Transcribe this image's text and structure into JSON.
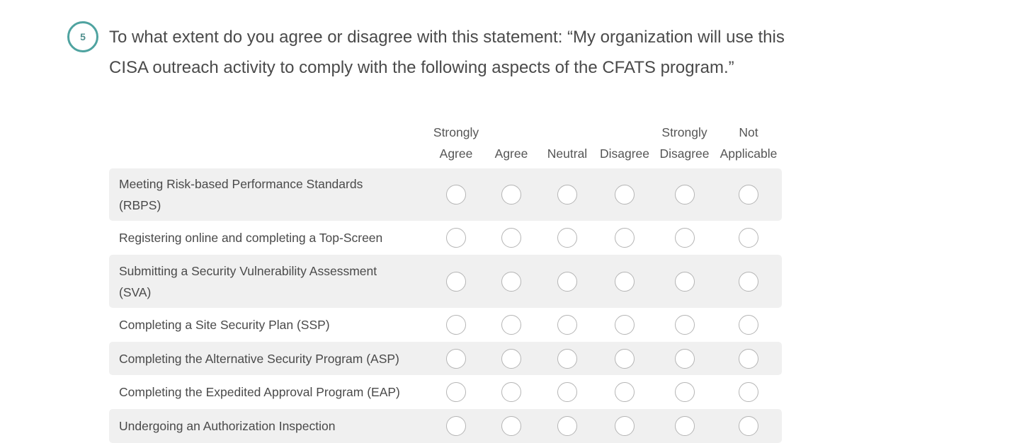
{
  "question": {
    "number": "5",
    "text": "To what extent do you agree or disagree with this statement: “My organization will use this CISA outreach activity to comply with the following aspects of the CFATS program.”",
    "accent_color": "#4fa3a0"
  },
  "columns": [
    {
      "line1": "Strongly",
      "line2": "Agree"
    },
    {
      "line1": "",
      "line2": "Agree"
    },
    {
      "line1": "",
      "line2": "Neutral"
    },
    {
      "line1": "",
      "line2": "Disagree"
    },
    {
      "line1": "Strongly",
      "line2": "Disagree"
    },
    {
      "line1": "Not",
      "line2": "Applicable"
    }
  ],
  "rows": [
    {
      "label": "Meeting Risk-based Performance Standards (RBPS)"
    },
    {
      "label": "Registering online and completing a Top-Screen"
    },
    {
      "label": "Submitting a Security Vulnerability Assessment (SVA)"
    },
    {
      "label": "Completing a Site Security Plan (SSP)"
    },
    {
      "label": "Completing the Alternative Security Program (ASP)"
    },
    {
      "label": "Completing the Expedited Approval Program (EAP)"
    },
    {
      "label": "Undergoing an Authorization Inspection"
    }
  ]
}
